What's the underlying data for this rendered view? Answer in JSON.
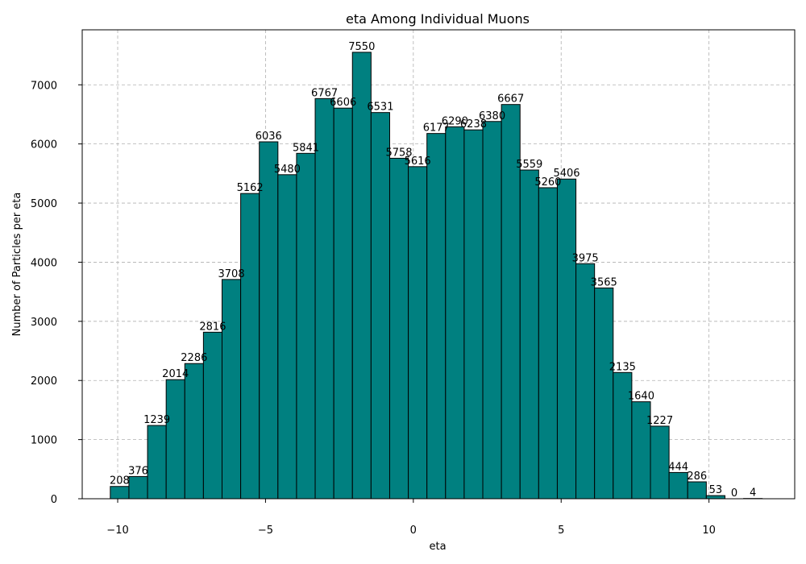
{
  "chart_data": {
    "type": "bar",
    "title": "eta Among Individual Muons",
    "xlabel": "eta",
    "ylabel": "Number of Particles per eta",
    "bin_start": -10.25,
    "bin_width": 0.63,
    "values": [
      208,
      376,
      1239,
      2014,
      2286,
      2816,
      3708,
      5162,
      6036,
      5480,
      5841,
      6767,
      6606,
      7550,
      6531,
      5758,
      5616,
      6177,
      6290,
      6238,
      6380,
      6667,
      5559,
      5260,
      5406,
      3975,
      3565,
      2135,
      1640,
      1227,
      444,
      286,
      53,
      0,
      4
    ],
    "xlim": [
      -11.2,
      12.9
    ],
    "ylim": [
      0,
      7930
    ],
    "xticks": [
      -10,
      -5,
      0,
      5,
      10
    ],
    "xtick_labels": [
      "−10",
      "−5",
      "0",
      "5",
      "10"
    ],
    "yticks": [
      0,
      1000,
      2000,
      3000,
      4000,
      5000,
      6000,
      7000
    ],
    "ytick_labels": [
      "0",
      "1000",
      "2000",
      "3000",
      "4000",
      "5000",
      "6000",
      "7000"
    ],
    "grid": true,
    "colors": {
      "bar": "#008080",
      "edge": "#000000",
      "grid": "#b0b0b0"
    }
  }
}
